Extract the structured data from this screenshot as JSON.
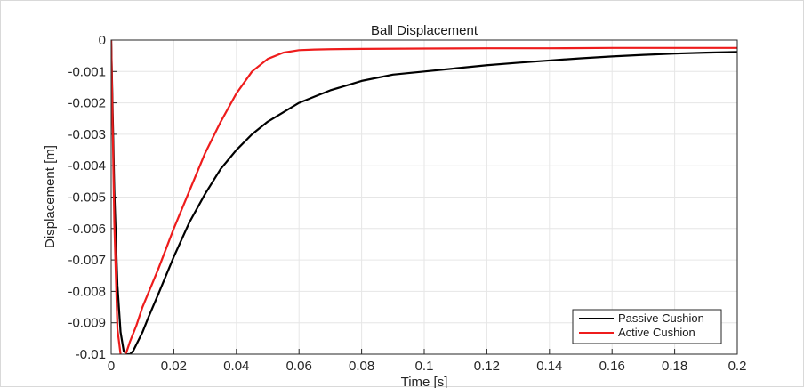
{
  "chart_data": {
    "type": "line",
    "title": "Ball Displacement",
    "xlabel": "Time [s]",
    "ylabel": "Displacement [m]",
    "xlim": [
      0,
      0.2
    ],
    "ylim": [
      -0.01,
      0
    ],
    "grid": true,
    "legend_position": "bottom-right",
    "x_ticks": [
      0,
      0.02,
      0.04,
      0.06,
      0.08,
      0.1,
      0.12,
      0.14,
      0.16,
      0.18,
      0.2
    ],
    "x_tick_labels": [
      "0",
      "0.02",
      "0.04",
      "0.06",
      "0.08",
      "0.1",
      "0.12",
      "0.14",
      "0.16",
      "0.18",
      "0.2"
    ],
    "y_ticks": [
      0,
      -0.001,
      -0.002,
      -0.003,
      -0.004,
      -0.005,
      -0.006,
      -0.007,
      -0.008,
      -0.009,
      -0.01
    ],
    "y_tick_labels": [
      "0",
      "-0.001",
      "-0.002",
      "-0.003",
      "-0.004",
      "-0.005",
      "-0.006",
      "-0.007",
      "-0.008",
      "-0.009",
      "-0.01"
    ],
    "series": [
      {
        "name": "Passive Cushion",
        "color": "#000000",
        "x": [
          0,
          0.001,
          0.002,
          0.003,
          0.004,
          0.005,
          0.006,
          0.007,
          0.008,
          0.01,
          0.012,
          0.015,
          0.02,
          0.025,
          0.03,
          0.035,
          0.04,
          0.045,
          0.05,
          0.055,
          0.06,
          0.065,
          0.07,
          0.08,
          0.09,
          0.1,
          0.11,
          0.12,
          0.13,
          0.14,
          0.15,
          0.16,
          0.17,
          0.18,
          0.19,
          0.2
        ],
        "y": [
          0,
          -0.0048,
          -0.0078,
          -0.0093,
          -0.0099,
          -0.01,
          -0.01,
          -0.0099,
          -0.0097,
          -0.0093,
          -0.0088,
          -0.0081,
          -0.0069,
          -0.0058,
          -0.0049,
          -0.0041,
          -0.0035,
          -0.003,
          -0.0026,
          -0.0023,
          -0.002,
          -0.0018,
          -0.0016,
          -0.0013,
          -0.0011,
          -0.001,
          -0.0009,
          -0.0008,
          -0.00072,
          -0.00065,
          -0.00058,
          -0.00052,
          -0.00047,
          -0.00043,
          -0.0004,
          -0.00038
        ]
      },
      {
        "name": "Active Cushion",
        "color": "#ee1c1c",
        "x": [
          0,
          0.001,
          0.002,
          0.003,
          0.004,
          0.005,
          0.006,
          0.008,
          0.01,
          0.015,
          0.02,
          0.025,
          0.03,
          0.035,
          0.04,
          0.045,
          0.05,
          0.055,
          0.06,
          0.065,
          0.07,
          0.08,
          0.1,
          0.12,
          0.14,
          0.16,
          0.18,
          0.2
        ],
        "y": [
          0,
          -0.0058,
          -0.0092,
          -0.01,
          -0.0101,
          -0.0099,
          -0.0096,
          -0.0091,
          -0.0085,
          -0.0073,
          -0.006,
          -0.0048,
          -0.0036,
          -0.0026,
          -0.0017,
          -0.001,
          -0.0006,
          -0.0004,
          -0.00032,
          -0.0003,
          -0.00029,
          -0.00028,
          -0.00027,
          -0.00026,
          -0.00026,
          -0.00025,
          -0.00025,
          -0.00025
        ]
      }
    ]
  }
}
